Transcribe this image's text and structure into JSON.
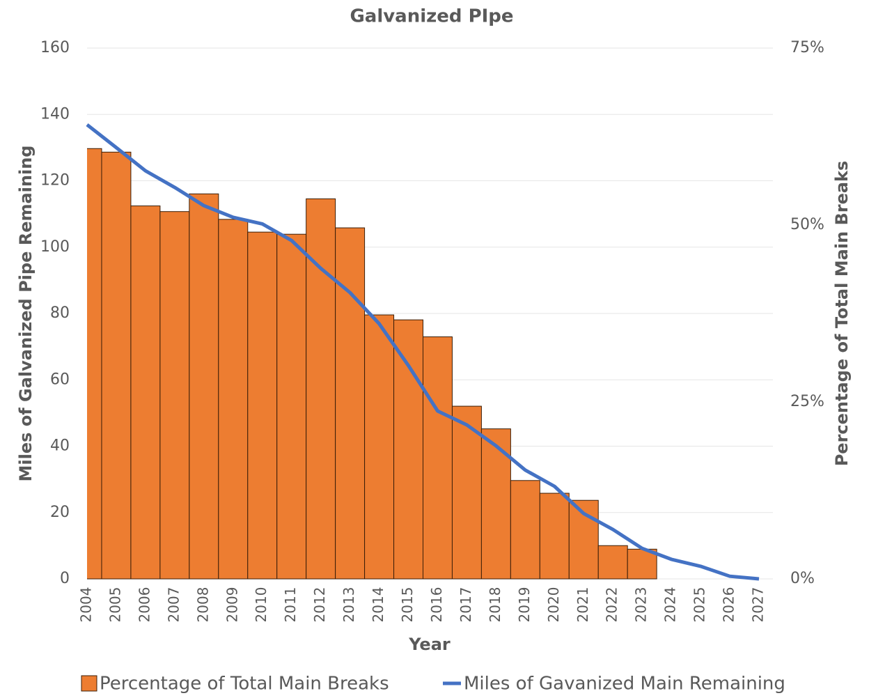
{
  "chart_data": {
    "type": "bar",
    "title": "Galvanized PIpe",
    "x_label": "Year",
    "y_label": "Miles of Galvanized Pipe Remaining",
    "y2_label": "Percentage of Total Main Breaks",
    "categories": [
      "2004",
      "2005",
      "2006",
      "2007",
      "2008",
      "2009",
      "2010",
      "2011",
      "2012",
      "2013",
      "2014",
      "2015",
      "2016",
      "2017",
      "2018",
      "2019",
      "2020",
      "2021",
      "2022",
      "2023",
      "2024",
      "2025",
      "2026",
      "2027"
    ],
    "series": [
      {
        "name": "Percentage of Total Main Breaks",
        "type": "bar",
        "axis": "y2",
        "color": "#ed7d31",
        "values": [
          60.8,
          60.3,
          52.7,
          51.9,
          54.4,
          50.8,
          49.0,
          48.7,
          53.7,
          49.6,
          37.3,
          36.6,
          34.2,
          24.4,
          21.2,
          13.9,
          12.1,
          11.1,
          4.7,
          4.2,
          null,
          null,
          null,
          null
        ]
      },
      {
        "name": "Miles of Gavanized Main Remaining",
        "type": "line",
        "color": "#4472c4",
        "values": [
          136.9,
          130,
          123,
          118,
          112.5,
          109,
          107,
          102,
          93.6,
          86.3,
          76.9,
          64.3,
          50.6,
          46.4,
          40.1,
          32.8,
          27.9,
          19.7,
          14.9,
          9.2,
          5.9,
          3.8,
          0.8,
          0
        ]
      }
    ],
    "ylim": [
      0,
      160
    ],
    "yticks": [
      0,
      20,
      40,
      60,
      80,
      100,
      120,
      140,
      160
    ],
    "y2lim": [
      0,
      75
    ],
    "y2ticks": [
      {
        "value": 0,
        "label": "0%"
      },
      {
        "value": 25,
        "label": "25%"
      },
      {
        "value": 50,
        "label": "50%"
      },
      {
        "value": 75,
        "label": "75%"
      }
    ],
    "grid": true,
    "legend": "bottom"
  }
}
